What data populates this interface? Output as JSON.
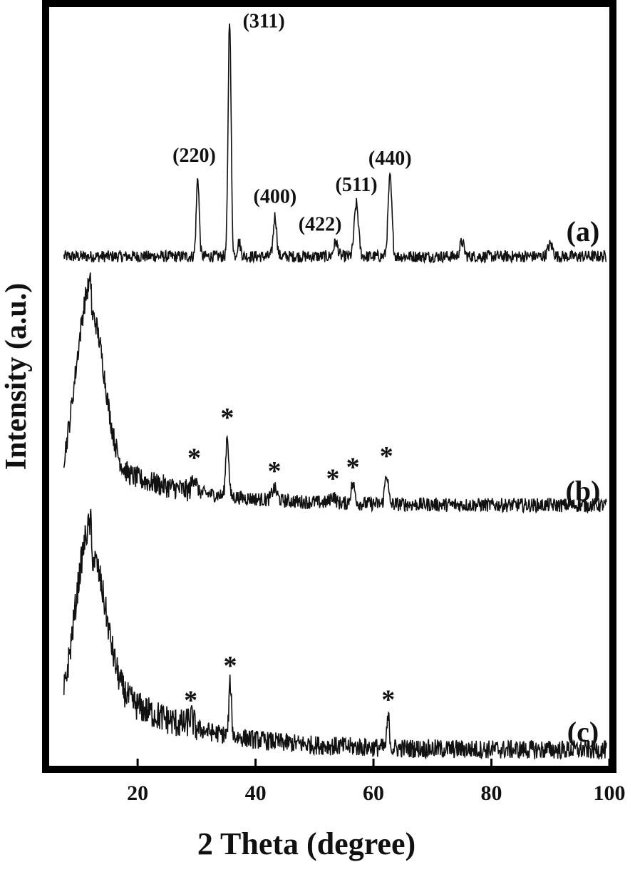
{
  "chart_data": {
    "type": "line",
    "xlabel": "2 Theta (degree)",
    "ylabel": "Intensity (a.u.)",
    "xlim": [
      5,
      100
    ],
    "xticks": [
      "20",
      "40",
      "60",
      "80",
      "100"
    ],
    "y_ticks_shown": false,
    "grid": false,
    "series": [
      {
        "name": "(a)",
        "baseline": 0.04,
        "noise": 0.025,
        "peaks": [
          {
            "x": 30.2,
            "height": 0.33,
            "width": 0.35
          },
          {
            "x": 35.6,
            "height": 1.0,
            "width": 0.35
          },
          {
            "x": 37.2,
            "height": 0.06,
            "width": 0.4
          },
          {
            "x": 43.3,
            "height": 0.17,
            "width": 0.4
          },
          {
            "x": 53.6,
            "height": 0.06,
            "width": 0.5
          },
          {
            "x": 57.1,
            "height": 0.22,
            "width": 0.5
          },
          {
            "x": 62.8,
            "height": 0.33,
            "width": 0.45
          },
          {
            "x": 75.0,
            "height": 0.06,
            "width": 0.5
          },
          {
            "x": 90.0,
            "height": 0.05,
            "width": 0.6
          }
        ],
        "annotations": [
          {
            "text": "(220)",
            "x": 30.2
          },
          {
            "text": "(311)",
            "x": 35.6
          },
          {
            "text": "(400)",
            "x": 43.3
          },
          {
            "text": "(422)",
            "x": 53.6
          },
          {
            "text": "(511)",
            "x": 57.1
          },
          {
            "text": "(440)",
            "x": 62.8
          }
        ]
      },
      {
        "name": "(b)",
        "baseline": 0.04,
        "noise": 0.03,
        "hump": {
          "x": 12.2,
          "height": 0.95,
          "width": 2.8,
          "tail": 0.2
        },
        "peaks": [
          {
            "x": 29.6,
            "height": 0.07,
            "width": 0.5
          },
          {
            "x": 35.2,
            "height": 0.26,
            "width": 0.35
          },
          {
            "x": 43.2,
            "height": 0.05,
            "width": 0.6
          },
          {
            "x": 53.1,
            "height": 0.03,
            "width": 0.6
          },
          {
            "x": 56.5,
            "height": 0.08,
            "width": 0.5
          },
          {
            "x": 62.2,
            "height": 0.13,
            "width": 0.4
          }
        ],
        "markers": [
          {
            "text": "*",
            "x": 29.6
          },
          {
            "text": "*",
            "x": 35.2
          },
          {
            "text": "*",
            "x": 43.2
          },
          {
            "text": "*",
            "x": 53.1
          },
          {
            "text": "*",
            "x": 56.5
          },
          {
            "text": "*",
            "x": 62.2
          }
        ]
      },
      {
        "name": "(c)",
        "baseline": 0.03,
        "noise": 0.04,
        "hump": {
          "x": 12.2,
          "height": 0.95,
          "width": 3.0,
          "tail": 0.32
        },
        "peaks": [
          {
            "x": 29.0,
            "height": 0.04,
            "width": 0.6
          },
          {
            "x": 35.7,
            "height": 0.22,
            "width": 0.3
          },
          {
            "x": 62.5,
            "height": 0.13,
            "width": 0.3
          }
        ],
        "markers": [
          {
            "text": "*",
            "x": 29.0
          },
          {
            "text": "*",
            "x": 35.7
          },
          {
            "text": "*",
            "x": 62.5
          }
        ]
      }
    ]
  }
}
